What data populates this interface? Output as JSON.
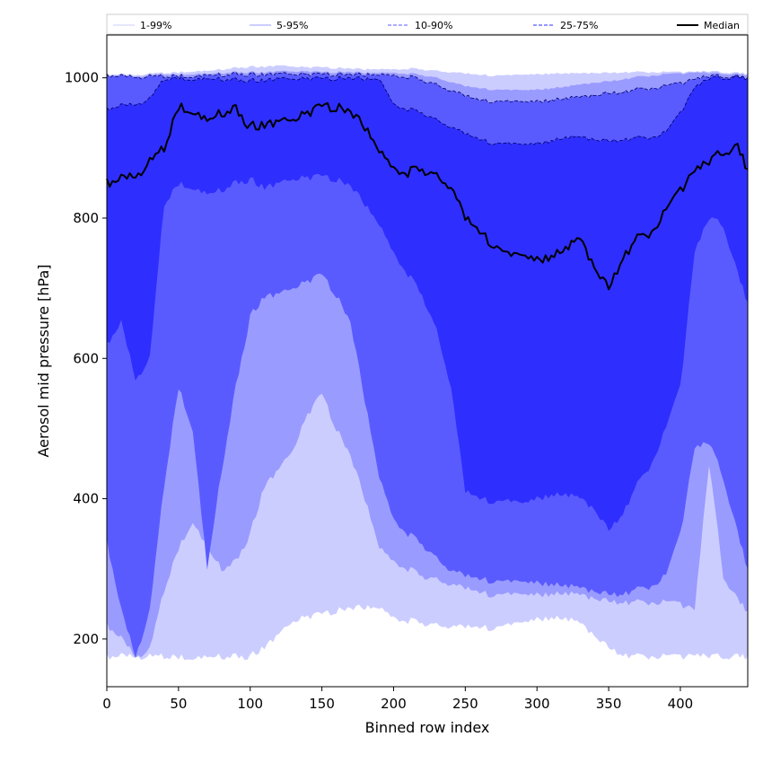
{
  "chart_data": {
    "type": "area",
    "xlabel": "Binned row index",
    "ylabel": "Aerosol mid pressure [hPa]",
    "xlim": [
      0,
      447
    ],
    "ylim": [
      132,
      1061
    ],
    "xticks": [
      0,
      50,
      100,
      150,
      200,
      250,
      300,
      350,
      400
    ],
    "yticks": [
      200,
      400,
      600,
      800,
      1000
    ],
    "legend_position": "top, spanning full width",
    "x": [
      0,
      10,
      20,
      30,
      40,
      50,
      60,
      70,
      80,
      90,
      100,
      110,
      120,
      130,
      140,
      150,
      160,
      170,
      180,
      190,
      200,
      210,
      220,
      230,
      240,
      250,
      260,
      270,
      280,
      290,
      300,
      310,
      320,
      330,
      340,
      350,
      360,
      370,
      380,
      390,
      400,
      410,
      420,
      430,
      440,
      447
    ],
    "series": [
      {
        "name": "1-99%",
        "color": "#cccdff",
        "line_style": "solid",
        "lower": [
          175,
          175,
          175,
          175,
          175,
          175,
          175,
          175,
          175,
          175,
          175,
          190,
          205,
          225,
          232,
          236,
          240,
          243,
          245,
          244,
          230,
          226,
          223,
          220,
          218,
          217,
          216,
          215,
          218,
          222,
          228,
          230,
          228,
          222,
          205,
          188,
          178,
          175,
          175,
          175,
          175,
          175,
          175,
          175,
          175,
          175
        ],
        "upper": [
          1005,
          1005,
          1004,
          1006,
          1007,
          1008,
          1010,
          1010,
          1012,
          1014,
          1016,
          1016,
          1017,
          1016,
          1015,
          1015,
          1014,
          1013,
          1012,
          1012,
          1012,
          1013,
          1012,
          1010,
          1008,
          1006,
          1004,
          1003,
          1003,
          1004,
          1005,
          1006,
          1006,
          1006,
          1007,
          1007,
          1008,
          1008,
          1008,
          1008,
          1008,
          1008,
          1009,
          1008,
          1007,
          1006
        ]
      },
      {
        "name": "5-95%",
        "color": "#9a9bff",
        "line_style": "solid",
        "lower": [
          220,
          200,
          175,
          185,
          270,
          330,
          370,
          330,
          300,
          310,
          350,
          420,
          440,
          470,
          520,
          550,
          500,
          460,
          400,
          330,
          310,
          300,
          290,
          285,
          278,
          272,
          266,
          262,
          262,
          262,
          263,
          264,
          264,
          262,
          258,
          254,
          253,
          252,
          252,
          252,
          250,
          240,
          450,
          290,
          255,
          240
        ],
        "upper": [
          1004,
          1003,
          1002,
          1004,
          1005,
          1005,
          1006,
          1006,
          1007,
          1008,
          1008,
          1008,
          1009,
          1009,
          1009,
          1008,
          1008,
          1008,
          1007,
          1007,
          1007,
          1006,
          1004,
          1000,
          994,
          988,
          985,
          983,
          982,
          982,
          983,
          985,
          987,
          990,
          993,
          995,
          998,
          1001,
          1003,
          1005,
          1006,
          1007,
          1007,
          1006,
          1005,
          1004
        ]
      },
      {
        "name": "10-90%",
        "color": "#5a5bff",
        "line_style": "dashed",
        "lower": [
          340,
          240,
          175,
          240,
          420,
          560,
          500,
          300,
          440,
          560,
          660,
          690,
          690,
          700,
          710,
          720,
          690,
          650,
          540,
          430,
          370,
          350,
          335,
          315,
          298,
          290,
          285,
          282,
          280,
          280,
          280,
          278,
          275,
          272,
          268,
          264,
          265,
          270,
          275,
          290,
          350,
          470,
          480,
          430,
          350,
          300
        ],
        "upper": [
          1003,
          1002,
          1001,
          1002,
          1002,
          1003,
          1003,
          1004,
          1004,
          1005,
          1005,
          1005,
          1005,
          1005,
          1005,
          1005,
          1005,
          1004,
          1004,
          1004,
          1003,
          1001,
          997,
          990,
          982,
          974,
          968,
          966,
          965,
          965,
          966,
          968,
          970,
          972,
          975,
          978,
          980,
          983,
          985,
          988,
          992,
          997,
          1002,
          1002,
          1001,
          1000
        ]
      },
      {
        "name": "25-75%",
        "color": "#2e2eff",
        "line_style": "dashed",
        "lower": [
          620,
          650,
          570,
          600,
          820,
          850,
          845,
          835,
          840,
          850,
          855,
          845,
          848,
          855,
          858,
          860,
          855,
          845,
          820,
          790,
          750,
          720,
          690,
          640,
          560,
          410,
          400,
          395,
          395,
          392,
          400,
          405,
          405,
          400,
          385,
          355,
          380,
          420,
          450,
          500,
          560,
          750,
          800,
          790,
          720,
          680
        ],
        "upper": [
          955,
          960,
          962,
          970,
          998,
          1000,
          999,
          999,
          998,
          997,
          996,
          997,
          998,
          998,
          999,
          999,
          999,
          999,
          998,
          998,
          962,
          955,
          950,
          940,
          930,
          920,
          912,
          906,
          905,
          904,
          906,
          910,
          914,
          915,
          912,
          910,
          912,
          914,
          915,
          922,
          950,
          985,
          999,
          1000,
          1000,
          1000
        ]
      }
    ],
    "median": {
      "name": "Median",
      "color": "#000000",
      "values": [
        850,
        855,
        860,
        880,
        900,
        960,
        955,
        940,
        950,
        955,
        930,
        935,
        935,
        940,
        950,
        960,
        958,
        950,
        930,
        895,
        870,
        865,
        870,
        860,
        845,
        800,
        780,
        760,
        745,
        745,
        740,
        745,
        755,
        770,
        730,
        700,
        745,
        770,
        780,
        810,
        840,
        865,
        880,
        895,
        900,
        870
      ]
    }
  }
}
